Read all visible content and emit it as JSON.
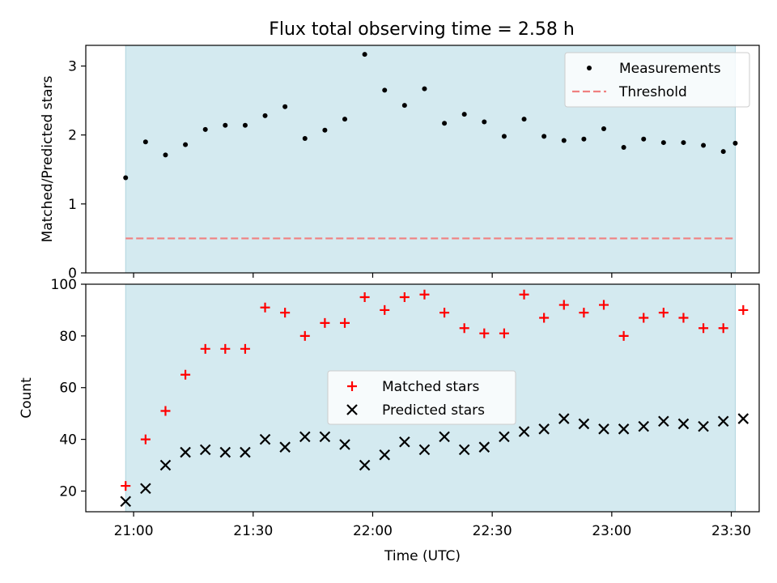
{
  "title": "Flux total observing time = 2.58 h",
  "chart_data": [
    {
      "type": "scatter",
      "ylabel": "Matched/Predicted stars",
      "ylim": [
        0,
        3.3
      ],
      "yticks": [
        0,
        1,
        2,
        3
      ],
      "x_axis": "time",
      "xlim": [
        "20:48",
        "23:37"
      ],
      "xticks": [
        "21:00",
        "21:30",
        "22:00",
        "22:30",
        "23:00",
        "23:30"
      ],
      "xticklabels_visible": false,
      "shaded_interval": {
        "from": "20:58",
        "to": "23:31",
        "color": "#d4eaf0"
      },
      "legend": {
        "position": "upper right",
        "entries": [
          {
            "label": "Measurements",
            "marker": "dot",
            "color": "#000000"
          },
          {
            "label": "Threshold",
            "marker": "dashed-line",
            "color": "#f08080"
          }
        ]
      },
      "threshold": {
        "name": "Threshold",
        "value": 0.5,
        "color": "#f08080",
        "style": "dashed"
      },
      "series": [
        {
          "name": "Measurements",
          "marker": "dot",
          "color": "#000000",
          "x": [
            "20:58",
            "21:03",
            "21:08",
            "21:13",
            "21:18",
            "21:23",
            "21:28",
            "21:33",
            "21:38",
            "21:43",
            "21:48",
            "21:53",
            "21:58",
            "22:03",
            "22:08",
            "22:13",
            "22:18",
            "22:23",
            "22:28",
            "22:33",
            "22:38",
            "22:43",
            "22:48",
            "22:53",
            "22:58",
            "23:03",
            "23:08",
            "23:13",
            "23:18",
            "23:23",
            "23:28",
            "23:31"
          ],
          "y": [
            1.38,
            1.9,
            1.71,
            1.86,
            2.08,
            2.14,
            2.14,
            2.28,
            2.41,
            1.95,
            2.07,
            2.23,
            3.17,
            2.65,
            2.43,
            2.67,
            2.17,
            2.3,
            2.19,
            1.98,
            2.23,
            1.98,
            1.92,
            1.94,
            2.09,
            1.82,
            1.94,
            1.89,
            1.89,
            1.85,
            1.76,
            1.88
          ]
        }
      ]
    },
    {
      "type": "scatter",
      "xlabel": "Time (UTC)",
      "ylabel": "Count",
      "ylim": [
        12,
        100
      ],
      "yticks": [
        20,
        40,
        60,
        80,
        100
      ],
      "x_axis": "time",
      "xlim": [
        "20:48",
        "23:37"
      ],
      "xticks": [
        "21:00",
        "21:30",
        "22:00",
        "22:30",
        "23:00",
        "23:30"
      ],
      "shaded_interval": {
        "from": "20:58",
        "to": "23:31",
        "color": "#d4eaf0"
      },
      "legend": {
        "position": "center",
        "entries": [
          {
            "label": "Matched stars",
            "marker": "plus",
            "color": "#ff0000"
          },
          {
            "label": "Predicted stars",
            "marker": "x",
            "color": "#000000"
          }
        ]
      },
      "series": [
        {
          "name": "Matched stars",
          "marker": "plus",
          "color": "#ff0000",
          "x": [
            "20:58",
            "21:03",
            "21:08",
            "21:13",
            "21:18",
            "21:23",
            "21:28",
            "21:33",
            "21:38",
            "21:43",
            "21:48",
            "21:53",
            "21:58",
            "22:03",
            "22:08",
            "22:13",
            "22:18",
            "22:23",
            "22:28",
            "22:33",
            "22:38",
            "22:43",
            "22:48",
            "22:53",
            "22:58",
            "23:03",
            "23:08",
            "23:13",
            "23:18",
            "23:23",
            "23:28",
            "23:33"
          ],
          "y": [
            22,
            40,
            51,
            65,
            75,
            75,
            75,
            91,
            89,
            80,
            85,
            85,
            95,
            90,
            95,
            96,
            89,
            83,
            81,
            81,
            96,
            87,
            92,
            89,
            92,
            80,
            87,
            89,
            87,
            83,
            83,
            90
          ]
        },
        {
          "name": "Predicted stars",
          "marker": "x",
          "color": "#000000",
          "x": [
            "20:58",
            "21:03",
            "21:08",
            "21:13",
            "21:18",
            "21:23",
            "21:28",
            "21:33",
            "21:38",
            "21:43",
            "21:48",
            "21:53",
            "21:58",
            "22:03",
            "22:08",
            "22:13",
            "22:18",
            "22:23",
            "22:28",
            "22:33",
            "22:38",
            "22:43",
            "22:48",
            "22:53",
            "22:58",
            "23:03",
            "23:08",
            "23:13",
            "23:18",
            "23:23",
            "23:28",
            "23:33"
          ],
          "y": [
            16,
            21,
            30,
            35,
            36,
            35,
            35,
            40,
            37,
            41,
            41,
            38,
            30,
            34,
            39,
            36,
            41,
            36,
            37,
            41,
            43,
            44,
            48,
            46,
            44,
            44,
            45,
            47,
            46,
            45,
            47,
            48
          ]
        }
      ]
    }
  ]
}
